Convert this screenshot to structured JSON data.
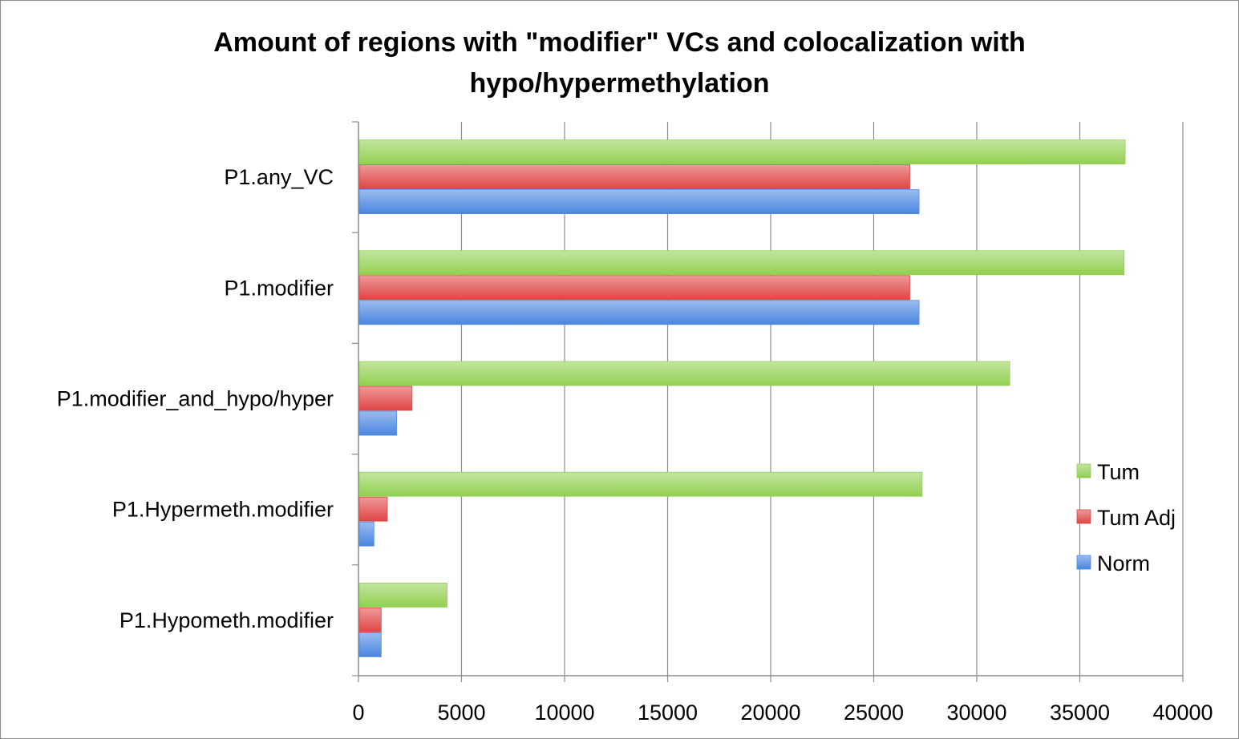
{
  "chart_data": {
    "type": "bar",
    "orientation": "horizontal",
    "title": "Amount of regions with \"modifier\" VCs and colocalization with hypo/hypermethylation",
    "title_lines": [
      "Amount of regions with \"modifier\" VCs and colocalization with",
      "hypo/hypermethylation"
    ],
    "categories": [
      "P1.any_VC",
      "P1.modifier",
      "P1.modifier_and_hypo/hyper",
      "P1.Hypermeth.modifier",
      "P1.Hypometh.modifier"
    ],
    "series": [
      {
        "name": "Tum",
        "color": "#92d050",
        "values": [
          37200,
          37150,
          31600,
          27350,
          4300
        ]
      },
      {
        "name": "Tum Adj",
        "color": "#e04545",
        "values": [
          26750,
          26750,
          2600,
          1400,
          1100
        ]
      },
      {
        "name": "Norm",
        "color": "#4a86e0",
        "values": [
          27200,
          27200,
          1850,
          750,
          1100
        ]
      }
    ],
    "xlim": [
      0,
      40000
    ],
    "xticks": [
      "0",
      "5000",
      "10000",
      "15000",
      "20000",
      "25000",
      "30000",
      "35000",
      "40000"
    ],
    "legend_order": [
      "Tum",
      "Tum Adj",
      "Norm"
    ],
    "legend_position": "right",
    "grid": "vertical"
  }
}
